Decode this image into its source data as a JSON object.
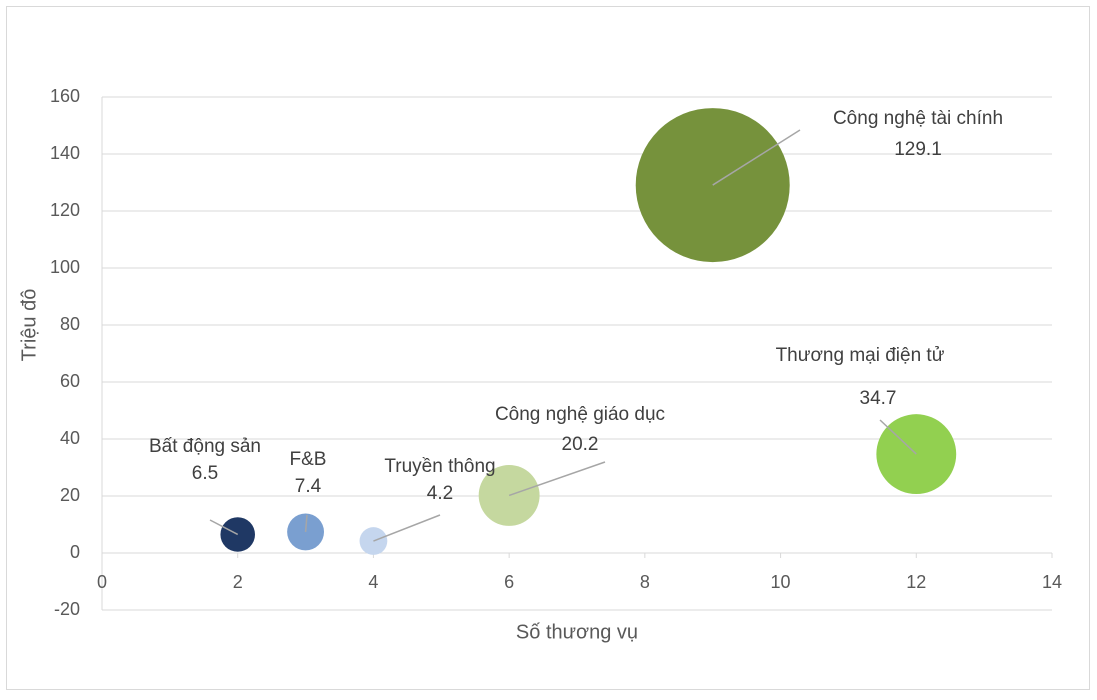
{
  "chart_data": {
    "type": "bubble",
    "x_label": "Số thương vụ",
    "y_label": "Triệu đô",
    "xlim": [
      0,
      14
    ],
    "xticks": [
      0,
      2,
      4,
      6,
      8,
      10,
      12,
      14
    ],
    "ylim": [
      -20,
      160
    ],
    "yticks": [
      -20,
      0,
      20,
      40,
      60,
      80,
      100,
      120,
      140,
      160
    ],
    "grid": true,
    "series": [
      {
        "name": "Bất động sản",
        "color": "#1f3864",
        "x": [
          2
        ],
        "values": [
          6.5
        ],
        "sizes": [
          6.5
        ]
      },
      {
        "name": "F&B",
        "color": "#7a9fd0",
        "x": [
          3
        ],
        "values": [
          7.4
        ],
        "sizes": [
          7.4
        ]
      },
      {
        "name": "Truyền thông",
        "color": "#c5d6ee",
        "x": [
          4
        ],
        "values": [
          4.2
        ],
        "sizes": [
          4.2
        ]
      },
      {
        "name": "Công nghệ giáo dục",
        "color": "#c5d89f",
        "x": [
          6
        ],
        "values": [
          20.2
        ],
        "sizes": [
          20.2
        ]
      },
      {
        "name": "Công nghệ tài chính",
        "color": "#76923c",
        "x": [
          9
        ],
        "values": [
          129.1
        ],
        "sizes": [
          129.1
        ]
      },
      {
        "name": "Thương mại điện tử",
        "color": "#92d050",
        "x": [
          12
        ],
        "values": [
          34.7
        ],
        "sizes": [
          34.7
        ]
      }
    ]
  }
}
